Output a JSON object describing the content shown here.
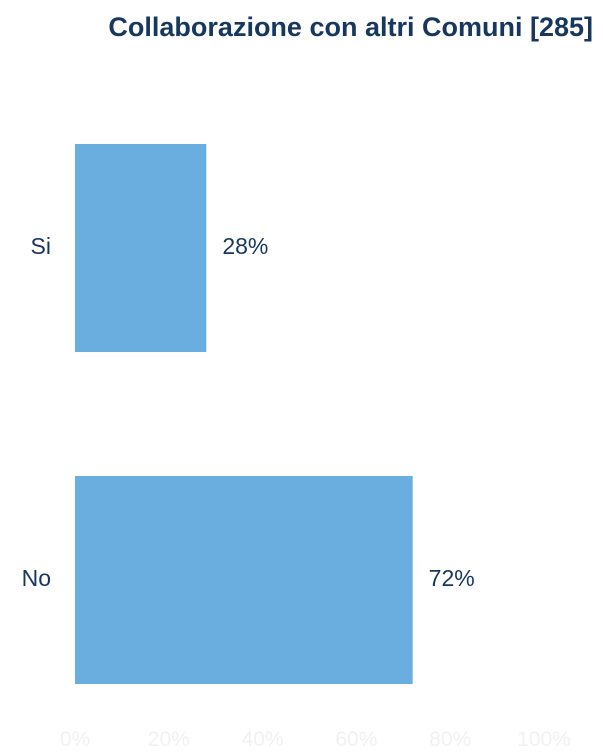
{
  "chart_data": {
    "type": "bar",
    "orientation": "horizontal",
    "title": "Collaborazione con altri Comuni [285]",
    "categories": [
      "Si",
      "No"
    ],
    "values": [
      28,
      72
    ],
    "value_labels": [
      "28%",
      "72%"
    ],
    "xlim": [
      0,
      100
    ],
    "x_ticks": [
      "0%",
      "20%",
      "40%",
      "60%",
      "80%",
      "100%"
    ],
    "xlabel": "",
    "ylabel": "",
    "grid": false,
    "legend": "none",
    "colors": {
      "bar": "#6aaee0",
      "title": "#17375e",
      "text": "#17375e",
      "tick": "#f1f1f1"
    }
  }
}
